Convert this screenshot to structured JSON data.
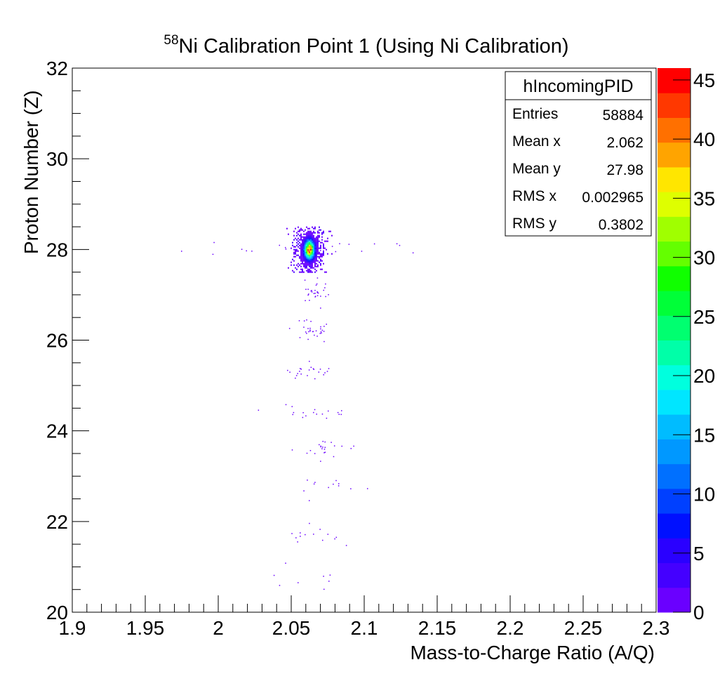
{
  "chart_data": {
    "type": "heatmap",
    "title_sup": "58",
    "title_main": "Ni Calibration Point 1 (Using Ni Calibration)",
    "xlabel": "Mass-to-Charge Ratio (A/Q)",
    "ylabel": "Proton Number (Z)",
    "xlim": [
      1.9,
      2.3
    ],
    "ylim": [
      20,
      32
    ],
    "x_ticks": [
      "1.9",
      "1.95",
      "2",
      "2.05",
      "2.1",
      "2.15",
      "2.2",
      "2.25",
      "2.3"
    ],
    "x_tick_values": [
      1.9,
      1.95,
      2.0,
      2.05,
      2.1,
      2.15,
      2.2,
      2.25,
      2.3
    ],
    "y_ticks": [
      "20",
      "22",
      "24",
      "26",
      "28",
      "30",
      "32"
    ],
    "y_tick_values": [
      20,
      22,
      24,
      26,
      28,
      30,
      32
    ],
    "z_range": [
      0,
      46
    ],
    "z_ticks": [
      "0",
      "5",
      "10",
      "15",
      "20",
      "25",
      "30",
      "35",
      "40",
      "45"
    ],
    "z_tick_values": [
      0,
      5,
      10,
      15,
      20,
      25,
      30,
      35,
      40,
      45
    ],
    "palette": [
      "#6a00ff",
      "#4400ff",
      "#2a00ff",
      "#0010ff",
      "#0040ff",
      "#0070ff",
      "#0098ff",
      "#00bcff",
      "#00e6ff",
      "#00ffde",
      "#00ffa8",
      "#00ff70",
      "#00ff38",
      "#10ff00",
      "#64ff00",
      "#a0ff00",
      "#deff00",
      "#ffe600",
      "#ffa400",
      "#ff7000",
      "#ff3800",
      "#ff0000"
    ],
    "main_peak": {
      "x": 2.062,
      "y": 27.98,
      "sigma_x": 0.0022,
      "sigma_y": 0.13,
      "peak": 46
    },
    "sparse_groups": [
      {
        "x": 2.064,
        "y": 28.0,
        "spread_x": 0.04,
        "spread_y": 0.08,
        "n": 22
      },
      {
        "x": 2.065,
        "y": 27.0,
        "spread_x": 0.005,
        "spread_y": 0.15,
        "n": 30
      },
      {
        "x": 2.063,
        "y": 26.2,
        "spread_x": 0.008,
        "spread_y": 0.12,
        "n": 30
      },
      {
        "x": 2.062,
        "y": 25.3,
        "spread_x": 0.01,
        "spread_y": 0.1,
        "n": 22
      },
      {
        "x": 2.07,
        "y": 24.4,
        "spread_x": 0.015,
        "spread_y": 0.1,
        "n": 18
      },
      {
        "x": 2.07,
        "y": 23.6,
        "spread_x": 0.012,
        "spread_y": 0.1,
        "n": 22
      },
      {
        "x": 2.075,
        "y": 22.7,
        "spread_x": 0.015,
        "spread_y": 0.12,
        "n": 12
      },
      {
        "x": 2.07,
        "y": 21.7,
        "spread_x": 0.012,
        "spread_y": 0.1,
        "n": 14
      },
      {
        "x": 2.06,
        "y": 20.8,
        "spread_x": 0.015,
        "spread_y": 0.12,
        "n": 8
      }
    ],
    "stats": {
      "name": "hIncomingPID",
      "rows": [
        {
          "label": "Entries",
          "value": "58884"
        },
        {
          "label": "Mean x",
          "value": "2.062"
        },
        {
          "label": "Mean y",
          "value": "27.98"
        },
        {
          "label": "RMS x",
          "value": "0.002965"
        },
        {
          "label": "RMS y",
          "value": "0.3802"
        }
      ]
    }
  }
}
